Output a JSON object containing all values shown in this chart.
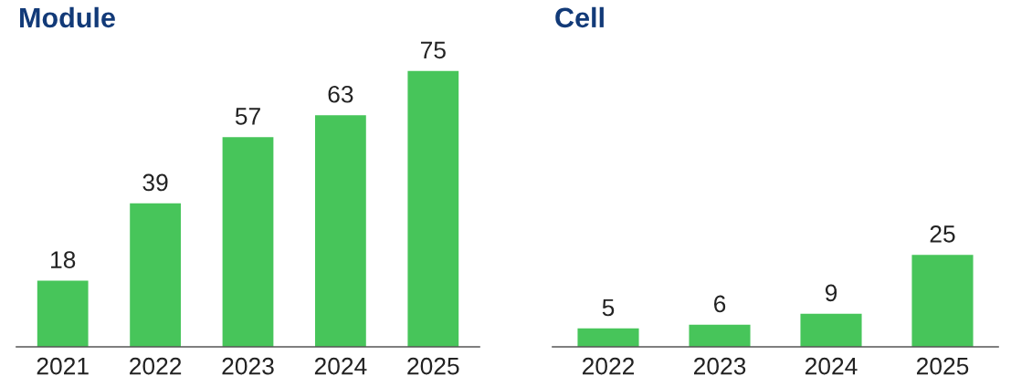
{
  "chart_data": [
    {
      "type": "bar",
      "title": "Module",
      "categories": [
        "2021",
        "2022",
        "2023",
        "2024",
        "2025"
      ],
      "values": [
        18,
        39,
        57,
        63,
        75
      ],
      "color": "#47c55a",
      "data_labels": true,
      "grid": false,
      "legend": false,
      "tick_labels": "x"
    },
    {
      "type": "bar",
      "title": "Cell",
      "categories": [
        "2022",
        "2023",
        "2024",
        "2025"
      ],
      "values": [
        5,
        6,
        9,
        25
      ],
      "color": "#47c55a",
      "data_labels": true,
      "grid": false,
      "legend": false,
      "tick_labels": "x"
    }
  ]
}
